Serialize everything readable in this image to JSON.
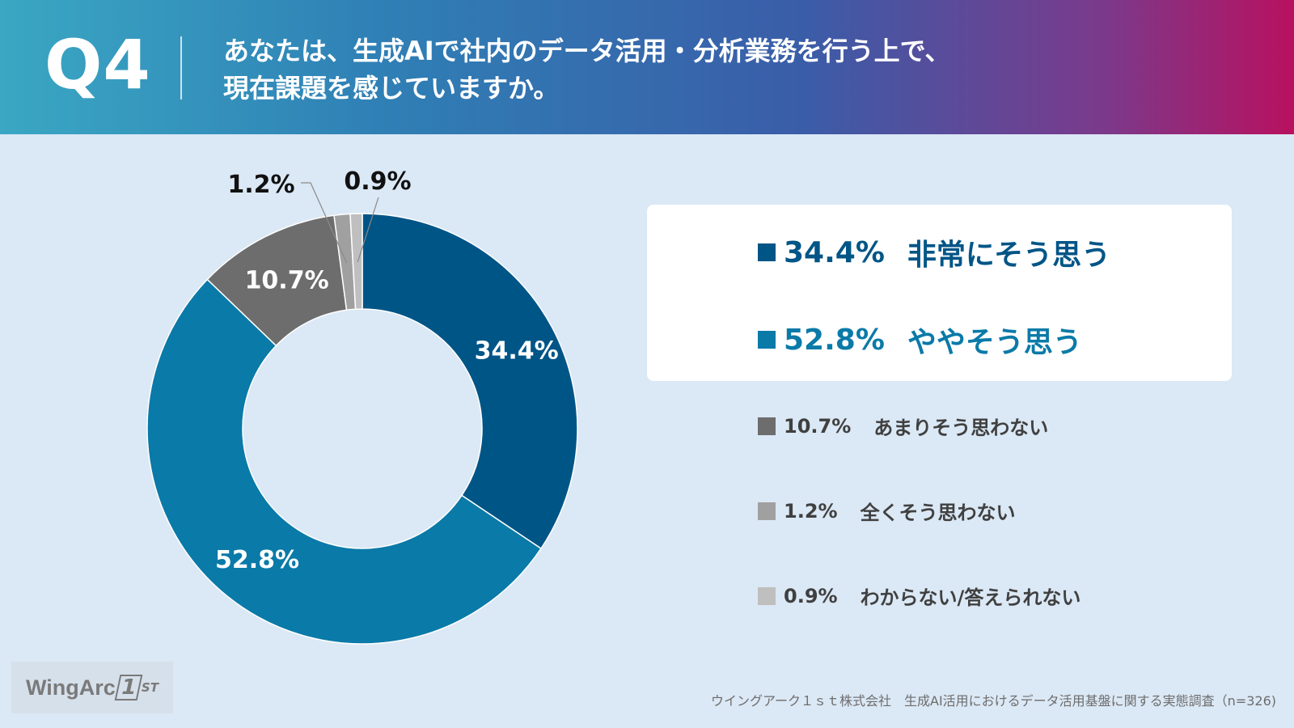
{
  "header": {
    "question_label": "Q4",
    "question_line1": "あなたは、生成AIで社内のデータ活用・分析業務を行う上で、",
    "question_line2": "現在課題を感じていますか。"
  },
  "chart_data": {
    "type": "pie",
    "variant": "donut",
    "categories": [
      "非常にそう思う",
      "ややそう思う",
      "あまりそう思わない",
      "全くそう思わない",
      "わからない/答えられない"
    ],
    "values": [
      34.4,
      52.8,
      10.7,
      1.2,
      0.9
    ],
    "value_labels": [
      "34.4%",
      "52.8%",
      "10.7%",
      "1.2%",
      "0.9%"
    ],
    "colors": [
      "#005587",
      "#0a7aa8",
      "#6d6d6d",
      "#a0a0a0",
      "#bfbfbf"
    ],
    "legend_position": "right"
  },
  "legend": {
    "items": [
      {
        "pct": "34.4%",
        "label": "非常にそう思う",
        "color": "#005587"
      },
      {
        "pct": "52.8%",
        "label": "ややそう思う",
        "color": "#0a7aa8"
      },
      {
        "pct": "10.7%",
        "label": "あまりそう思わない",
        "color": "#6d6d6d"
      },
      {
        "pct": "1.2%",
        "label": "全くそう思わない",
        "color": "#a0a0a0"
      },
      {
        "pct": "0.9%",
        "label": "わからない/答えられない",
        "color": "#bfbfbf"
      }
    ]
  },
  "footer": {
    "logo_text": "WingArc",
    "logo_mark": "1",
    "logo_suffix": "ST",
    "source": "ウイングアーク１ｓｔ株式会社　生成AI活用におけるデータ活用基盤に関する実態調査（n=326)"
  }
}
